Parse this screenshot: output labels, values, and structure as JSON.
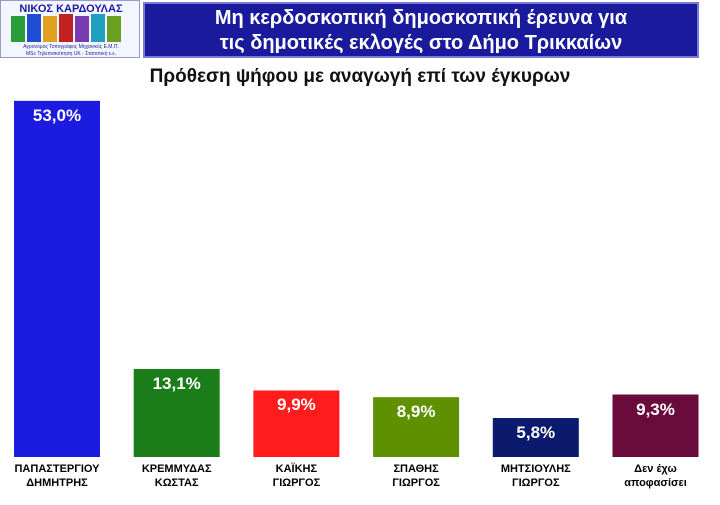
{
  "logo": {
    "name": "ΝΙΚΟΣ ΚΑΡΔΟΥΛΑΣ",
    "line1": "Αγρονόμος Τοπογράφος Μηχανικός Ε.Μ.Π.",
    "line2": "MSc Τηλεπισκόπηση UK - Στατιστική ε.ε."
  },
  "header": {
    "title": "Μη κερδοσκοπική δημοσκοπική έρευνα για\nτις δημοτικές εκλογές στο Δήμο Τρικκαίων"
  },
  "chart_data": {
    "type": "bar",
    "title": "Πρόθεση ψήφου με αναγωγή επί των έγκυρων",
    "categories": [
      "ΠΑΠΑΣΤΕΡΓΙΟΥ\nΔΗΜΗΤΡΗΣ",
      "ΚΡΕΜΜΥΔΑΣ\nΚΩΣΤΑΣ",
      "ΚΑΪΚΗΣ\nΓΙΩΡΓΟΣ",
      "ΣΠΑΘΗΣ\nΓΙΩΡΓΟΣ",
      "ΜΗΤΣΙΟΥΛΗΣ\nΓΙΩΡΓΟΣ",
      "Δεν έχω\nαποφασίσει"
    ],
    "values": [
      53.0,
      13.1,
      9.9,
      8.9,
      5.8,
      9.3
    ],
    "value_labels": [
      "53,0%",
      "13,1%",
      "9,9%",
      "8,9%",
      "5,8%",
      "9,3%"
    ],
    "colors": [
      "#1c1ce0",
      "#1a7d1a",
      "#ff1c1c",
      "#5e9000",
      "#0c1a6e",
      "#6a0b3c"
    ]
  }
}
